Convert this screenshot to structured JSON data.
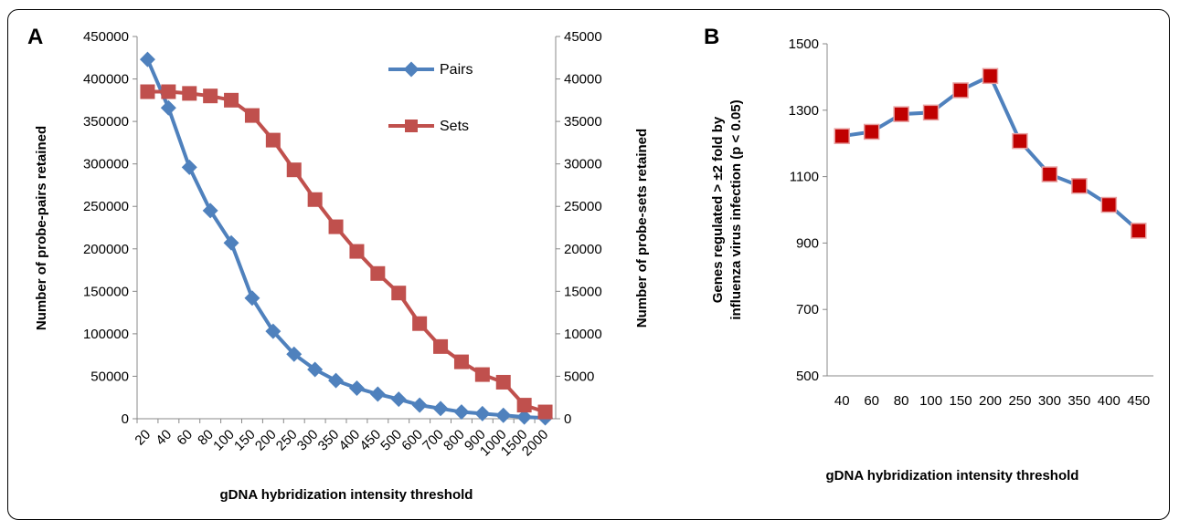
{
  "chart_data": [
    {
      "panel": "A",
      "type": "line",
      "categories": [
        "20",
        "40",
        "60",
        "80",
        "100",
        "150",
        "200",
        "250",
        "300",
        "350",
        "400",
        "450",
        "500",
        "600",
        "700",
        "800",
        "900",
        "1000",
        "1500",
        "2000"
      ],
      "series": [
        {
          "name": "Pairs",
          "axis": "left",
          "marker": "diamond",
          "color": "#4F81BD",
          "values": [
            423000,
            366000,
            296000,
            245000,
            207000,
            142000,
            103000,
            76000,
            58000,
            45000,
            36000,
            29000,
            23000,
            16000,
            12000,
            8000,
            6000,
            4000,
            2000,
            1000
          ]
        },
        {
          "name": "Sets",
          "axis": "right",
          "marker": "square",
          "color": "#C0504D",
          "values": [
            38500,
            38500,
            38300,
            38000,
            37500,
            35700,
            32800,
            29300,
            25800,
            22600,
            19700,
            17100,
            14800,
            11200,
            8500,
            6700,
            5200,
            4300,
            1600,
            800
          ]
        }
      ],
      "xlabel": "gDNA hybridization intensity threshold",
      "ylabel": "Number  of probe-pairs retained",
      "y2label": "Number of probe-sets retained",
      "ylim": [
        0,
        450000
      ],
      "y2lim": [
        0,
        45000
      ],
      "yticks": [
        "0",
        "50000",
        "100000",
        "150000",
        "200000",
        "250000",
        "300000",
        "350000",
        "400000",
        "450000"
      ],
      "y2ticks": [
        "0",
        "5000",
        "10000",
        "15000",
        "20000",
        "25000",
        "30000",
        "35000",
        "40000",
        "45000"
      ],
      "legend": "top-right",
      "grid": false
    },
    {
      "panel": "B",
      "type": "line",
      "categories": [
        "40",
        "60",
        "80",
        "100",
        "150",
        "200",
        "250",
        "300",
        "350",
        "400",
        "450"
      ],
      "series": [
        {
          "name": "",
          "marker": "square",
          "line_color": "#4F81BD",
          "marker_color": "#C00000",
          "values": [
            1222,
            1235,
            1288,
            1293,
            1360,
            1403,
            1207,
            1107,
            1072,
            1015,
            937
          ]
        }
      ],
      "xlabel": "gDNA hybridization  intensity threshold",
      "ylabel_line1": "Genes regulated > ±2 fold by",
      "ylabel_line2": "influenza virus  infection (p < 0.05)",
      "ylim": [
        500,
        1500
      ],
      "yticks": [
        "500",
        "700",
        "900",
        "1100",
        "1300",
        "1500"
      ],
      "grid": false
    }
  ]
}
